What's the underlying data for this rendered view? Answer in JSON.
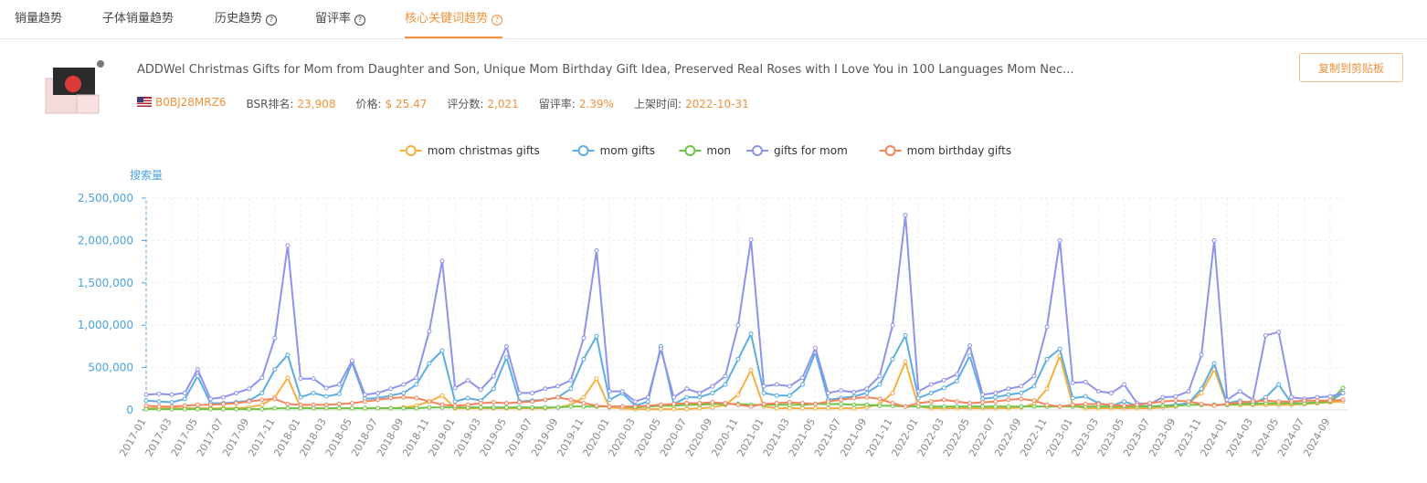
{
  "tabs": [
    "销量趋势",
    "子体销量趋势",
    "历史趋势",
    "留评率",
    "核心关键词趋势"
  ],
  "product": {
    "title": "ADDWel Christmas Gifts for Mom from Daughter and Son, Unique Mom Birthday Gift Idea, Preserved Real Roses with I Love You in 100 Languages Mom Nec...",
    "asin": "B0BJ28MRZ6",
    "stats": [
      {
        "label": "BSR排名:",
        "value": "23,908"
      },
      {
        "label": "价格:",
        "value": "$ 25.47"
      },
      {
        "label": "评分数:",
        "value": "2,021"
      },
      {
        "label": "留评率:",
        "value": "2.39%"
      },
      {
        "label": "上架时间:",
        "value": "2022-10-31"
      }
    ],
    "button": "复制到剪贴板"
  },
  "chart_data": {
    "type": "line",
    "y_label": "搜索量",
    "categories": [
      "2017-01",
      null,
      "2017-03",
      null,
      "2017-05",
      null,
      "2017-07",
      null,
      "2017-09",
      null,
      "2017-11",
      null,
      "2018-01",
      null,
      "2018-03",
      null,
      "2018-05",
      null,
      "2018-07",
      null,
      "2018-09",
      null,
      "2018-11",
      null,
      "2019-01",
      null,
      "2019-03",
      null,
      "2019-05",
      null,
      "2019-07",
      null,
      "2019-09",
      null,
      "2019-11",
      null,
      "2020-01",
      null,
      "2020-03",
      null,
      "2020-05",
      null,
      "2020-07",
      null,
      "2020-09",
      null,
      "2020-11",
      null,
      "2021-01",
      null,
      "2021-03",
      null,
      "2021-05",
      null,
      "2021-07",
      null,
      "2021-09",
      null,
      "2021-11",
      null,
      "2022-01",
      null,
      "2022-03",
      null,
      "2022-05",
      null,
      "2022-07",
      null,
      "2022-09",
      null,
      "2022-11",
      null,
      "2023-01",
      null,
      "2023-03",
      null,
      "2023-05",
      null,
      "2023-07",
      null,
      "2023-09",
      null,
      "2023-11",
      null,
      "2024-01",
      null,
      "2024-03",
      null,
      "2024-05",
      null,
      "2024-07",
      null,
      "2024-09",
      null
    ],
    "ylim": [
      0,
      2500000
    ],
    "yticks": [
      0,
      {
        "value": 500000,
        "label": "500,000"
      },
      {
        "value": 1000000,
        "label": "1,000,000"
      },
      {
        "value": 1500000,
        "label": "1,500,000"
      },
      {
        "value": 2000000,
        "label": "2,000,000"
      },
      {
        "value": 2500000,
        "label": "2,500,000"
      }
    ],
    "grid": true,
    "series": [
      {
        "name": "mom christmas gifts",
        "color": "#f5b041",
        "values": [
          20000,
          20000,
          20000,
          20000,
          20000,
          20000,
          20000,
          20000,
          30000,
          60000,
          150000,
          380000,
          30000,
          20000,
          20000,
          20000,
          20000,
          20000,
          20000,
          20000,
          30000,
          50000,
          100000,
          170000,
          20000,
          20000,
          20000,
          20000,
          20000,
          20000,
          20000,
          20000,
          30000,
          60000,
          150000,
          370000,
          30000,
          20000,
          10000,
          10000,
          10000,
          10000,
          10000,
          20000,
          30000,
          60000,
          180000,
          470000,
          40000,
          20000,
          20000,
          20000,
          20000,
          20000,
          20000,
          20000,
          30000,
          70000,
          200000,
          570000,
          40000,
          20000,
          20000,
          20000,
          20000,
          20000,
          20000,
          20000,
          30000,
          70000,
          250000,
          640000,
          50000,
          20000,
          20000,
          20000,
          20000,
          20000,
          20000,
          30000,
          40000,
          80000,
          200000,
          480000,
          60000,
          60000,
          60000,
          60000,
          60000,
          60000,
          70000,
          80000,
          90000,
          100000
        ]
      },
      {
        "name": "mom gifts",
        "color": "#5dade2",
        "values": [
          110000,
          100000,
          90000,
          130000,
          400000,
          80000,
          80000,
          90000,
          110000,
          200000,
          480000,
          650000,
          150000,
          200000,
          160000,
          190000,
          560000,
          130000,
          140000,
          170000,
          200000,
          300000,
          550000,
          700000,
          100000,
          140000,
          110000,
          250000,
          620000,
          100000,
          110000,
          120000,
          150000,
          250000,
          600000,
          870000,
          120000,
          200000,
          50000,
          100000,
          750000,
          70000,
          150000,
          150000,
          200000,
          300000,
          600000,
          900000,
          200000,
          170000,
          170000,
          300000,
          680000,
          120000,
          140000,
          160000,
          200000,
          300000,
          600000,
          880000,
          140000,
          200000,
          260000,
          340000,
          640000,
          130000,
          150000,
          180000,
          200000,
          280000,
          600000,
          720000,
          140000,
          160000,
          80000,
          50000,
          100000,
          50000,
          40000,
          50000,
          60000,
          80000,
          250000,
          550000,
          80000,
          110000,
          70000,
          150000,
          300000,
          80000,
          80000,
          90000,
          100000,
          200000
        ]
      },
      {
        "name": "mon",
        "color": "#6cc644",
        "values": [
          10000,
          10000,
          10000,
          10000,
          10000,
          10000,
          10000,
          10000,
          10000,
          10000,
          20000,
          20000,
          20000,
          20000,
          20000,
          20000,
          20000,
          20000,
          20000,
          20000,
          20000,
          20000,
          30000,
          30000,
          30000,
          30000,
          30000,
          30000,
          30000,
          30000,
          30000,
          30000,
          30000,
          40000,
          40000,
          40000,
          40000,
          40000,
          30000,
          40000,
          50000,
          50000,
          60000,
          60000,
          70000,
          70000,
          70000,
          60000,
          60000,
          60000,
          60000,
          60000,
          70000,
          70000,
          70000,
          60000,
          60000,
          50000,
          50000,
          40000,
          40000,
          40000,
          40000,
          40000,
          40000,
          40000,
          40000,
          40000,
          40000,
          40000,
          40000,
          40000,
          40000,
          40000,
          40000,
          40000,
          40000,
          40000,
          40000,
          50000,
          50000,
          60000,
          60000,
          60000,
          60000,
          70000,
          70000,
          80000,
          80000,
          80000,
          80000,
          90000,
          100000,
          260000
        ]
      },
      {
        "name": "gifts for mom",
        "color": "#8e93ec",
        "values": [
          180000,
          190000,
          180000,
          200000,
          480000,
          130000,
          150000,
          200000,
          250000,
          380000,
          850000,
          1940000,
          370000,
          370000,
          260000,
          300000,
          580000,
          180000,
          200000,
          250000,
          300000,
          380000,
          930000,
          1760000,
          260000,
          350000,
          240000,
          400000,
          750000,
          200000,
          200000,
          250000,
          280000,
          350000,
          850000,
          1880000,
          220000,
          220000,
          100000,
          150000,
          720000,
          150000,
          250000,
          200000,
          280000,
          400000,
          1000000,
          2010000,
          280000,
          300000,
          280000,
          380000,
          730000,
          200000,
          230000,
          210000,
          250000,
          400000,
          1000000,
          2300000,
          220000,
          300000,
          350000,
          420000,
          760000,
          180000,
          200000,
          250000,
          280000,
          400000,
          980000,
          2000000,
          320000,
          330000,
          220000,
          200000,
          300000,
          80000,
          70000,
          150000,
          160000,
          220000,
          650000,
          2000000,
          120000,
          220000,
          120000,
          880000,
          920000,
          150000,
          130000,
          150000,
          160000,
          200000
        ]
      },
      {
        "name": "mom birthday gifts",
        "color": "#f5845c",
        "values": [
          50000,
          40000,
          40000,
          50000,
          60000,
          60000,
          70000,
          80000,
          100000,
          120000,
          130000,
          70000,
          60000,
          60000,
          60000,
          70000,
          80000,
          100000,
          120000,
          140000,
          150000,
          140000,
          100000,
          60000,
          50000,
          60000,
          80000,
          90000,
          80000,
          90000,
          100000,
          120000,
          150000,
          120000,
          80000,
          50000,
          40000,
          40000,
          40000,
          50000,
          60000,
          70000,
          80000,
          80000,
          90000,
          80000,
          60000,
          40000,
          70000,
          80000,
          90000,
          80000,
          70000,
          100000,
          120000,
          140000,
          150000,
          130000,
          80000,
          40000,
          80000,
          100000,
          120000,
          100000,
          80000,
          90000,
          100000,
          120000,
          130000,
          110000,
          60000,
          40000,
          60000,
          70000,
          70000,
          60000,
          50000,
          60000,
          80000,
          100000,
          110000,
          100000,
          70000,
          50000,
          70000,
          90000,
          100000,
          110000,
          100000,
          100000,
          110000,
          110000,
          110000,
          120000
        ]
      }
    ]
  }
}
